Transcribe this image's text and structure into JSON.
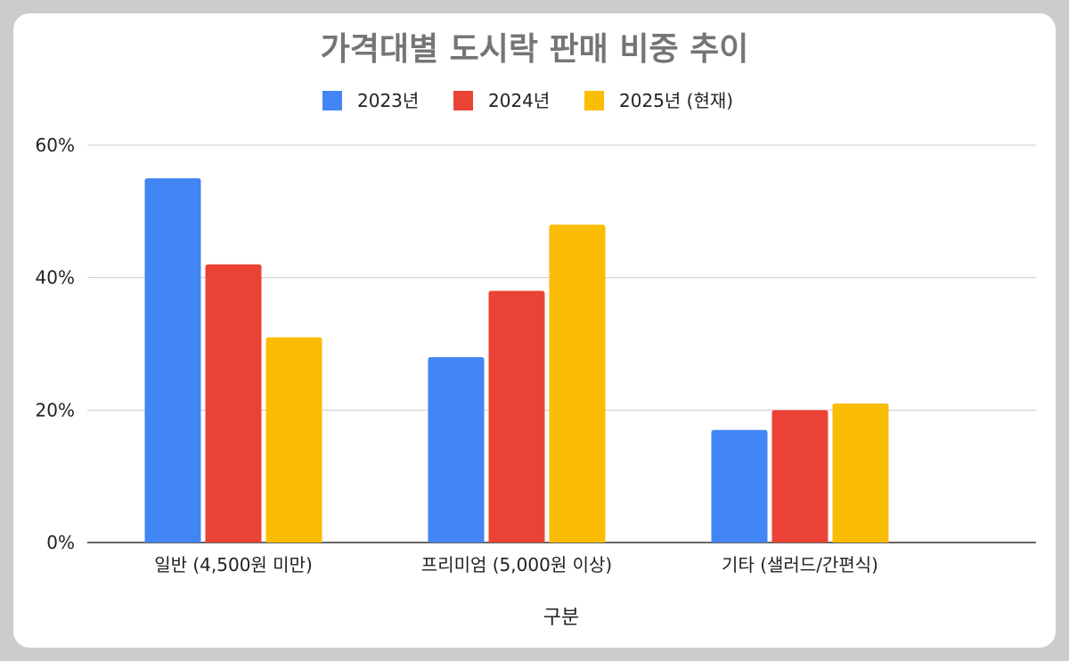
{
  "chart_data": {
    "type": "bar",
    "title": "가격대별 도시락 판매 비중 추이",
    "xlabel": "구분",
    "ylabel": "",
    "categories": [
      "일반 (4,500원 미만)",
      "프리미엄 (5,000원 이상)",
      "기타 (샐러드/간편식)"
    ],
    "series": [
      {
        "name": "2023년",
        "color": "#4285F4",
        "values": [
          55,
          28,
          17
        ]
      },
      {
        "name": "2024년",
        "color": "#EA4335",
        "values": [
          42,
          38,
          20
        ]
      },
      {
        "name": "2025년 (현재)",
        "color": "#FBBC04",
        "values": [
          31,
          48,
          21
        ]
      }
    ],
    "ylim": [
      0,
      60
    ],
    "yticks": [
      0,
      20,
      40,
      60
    ],
    "ytick_labels": [
      "0%",
      "20%",
      "40%",
      "60%"
    ],
    "grid": true,
    "legend_position": "top"
  }
}
